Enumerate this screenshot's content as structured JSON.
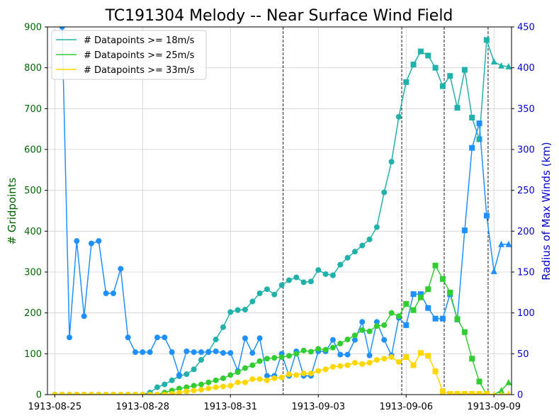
{
  "chart_data": {
    "type": "line",
    "title": "TC191304 Melody -- Near Surface Wind Field",
    "ylabel": "# Gridpoints",
    "y2label": "Radius of Max Winds (km)",
    "xticks": [
      "1913-08-25",
      "1913-08-28",
      "1913-08-31",
      "1913-09-03",
      "1913-09-06",
      "1913-09-09"
    ],
    "xtick_day_index": [
      0,
      3,
      6,
      9,
      12,
      15
    ],
    "xlim_days": [
      -0.25,
      15.6
    ],
    "ylim": [
      0,
      900
    ],
    "y2lim": [
      0,
      450
    ],
    "yticks": [
      0,
      100,
      200,
      300,
      400,
      500,
      600,
      700,
      800,
      900
    ],
    "y2ticks": [
      0,
      50,
      100,
      150,
      200,
      250,
      300,
      350,
      400,
      450
    ],
    "grid": true,
    "legend_position": "top-left",
    "left_axis_color": "#006400",
    "right_axis_color": "#0000cd",
    "vlines_days": [
      7.8,
      11.85,
      13.3,
      14.8
    ],
    "x_days": [
      0,
      0.25,
      0.5,
      0.75,
      1,
      1.25,
      1.5,
      1.75,
      2,
      2.25,
      2.5,
      2.75,
      3,
      3.25,
      3.5,
      3.75,
      4,
      4.25,
      4.5,
      4.75,
      5,
      5.25,
      5.5,
      5.75,
      6,
      6.25,
      6.5,
      6.75,
      7,
      7.25,
      7.5,
      7.75,
      8,
      8.25,
      8.5,
      8.75,
      9,
      9.25,
      9.5,
      9.75,
      10,
      10.25,
      10.5,
      10.75,
      11,
      11.25,
      11.5,
      11.75,
      12,
      12.25,
      12.5,
      12.75,
      13,
      13.25,
      13.5,
      13.75,
      14,
      14.25,
      14.5,
      14.75,
      15,
      15.25,
      15.5
    ],
    "markers": [
      "o",
      "o",
      "o",
      "o",
      "o",
      "o",
      "o",
      "o",
      "o",
      "o",
      "o",
      "o",
      "o",
      "o",
      "o",
      "o",
      "o",
      "o",
      "o",
      "o",
      "o",
      "o",
      "o",
      "o",
      "o",
      "o",
      "o",
      "o",
      "o",
      "o",
      "o",
      "o",
      "o",
      "o",
      "o",
      "o",
      "o",
      "o",
      "o",
      "o",
      "o",
      "o",
      "o",
      "o",
      "o",
      "o",
      "o",
      "o",
      "s",
      "s",
      "s",
      "s",
      "s",
      "s",
      "s",
      "s",
      "s",
      "s",
      "s",
      "s",
      "^",
      "^",
      "^"
    ],
    "series": [
      {
        "name": "# Datapoints >= 18m/s",
        "color": "#20b2aa",
        "axis": "left",
        "values": [
          0,
          0,
          0,
          0,
          0,
          0,
          0,
          0,
          0,
          0,
          0,
          0,
          0,
          5,
          18,
          25,
          35,
          45,
          50,
          62,
          85,
          105,
          135,
          165,
          202,
          207,
          208,
          228,
          248,
          258,
          245,
          268,
          280,
          287,
          275,
          277,
          305,
          295,
          292,
          318,
          335,
          350,
          365,
          380,
          410,
          495,
          570,
          680,
          765,
          808,
          840,
          830,
          800,
          755,
          780,
          702,
          795,
          678,
          625,
          868,
          815,
          805,
          803
        ]
      },
      {
        "name": "# Datapoints >= 25m/s",
        "color": "#32cd32",
        "axis": "left",
        "values": [
          0,
          0,
          0,
          0,
          0,
          0,
          0,
          0,
          0,
          0,
          0,
          0,
          0,
          0,
          0,
          5,
          10,
          15,
          18,
          22,
          25,
          30,
          35,
          40,
          48,
          55,
          65,
          72,
          82,
          88,
          90,
          92,
          95,
          100,
          108,
          105,
          112,
          110,
          115,
          125,
          135,
          145,
          158,
          155,
          168,
          170,
          200,
          192,
          222,
          207,
          238,
          258,
          316,
          283,
          250,
          185,
          153,
          88,
          32,
          0,
          0,
          10,
          30
        ]
      },
      {
        "name": "# Datapoints >= 33m/s",
        "color": "#ffd700",
        "axis": "left",
        "values": [
          0,
          0,
          0,
          0,
          0,
          0,
          0,
          0,
          0,
          0,
          0,
          0,
          0,
          0,
          0,
          0,
          2,
          5,
          8,
          10,
          12,
          15,
          18,
          20,
          22,
          30,
          30,
          38,
          38,
          35,
          40,
          42,
          50,
          48,
          52,
          52,
          58,
          62,
          68,
          70,
          72,
          78,
          75,
          78,
          85,
          88,
          92,
          80,
          92,
          72,
          102,
          95,
          57,
          8,
          2,
          2,
          2,
          2,
          2,
          2,
          0,
          0,
          2
        ]
      },
      {
        "name": "Radius of Max Winds",
        "color": "#1e90ff",
        "axis": "right",
        "values": [
          null,
          450,
          70,
          188,
          96,
          185,
          188,
          124,
          124,
          154,
          70,
          52,
          52,
          52,
          70,
          70,
          52,
          24,
          53,
          52,
          52,
          52,
          53,
          51,
          51,
          29,
          69,
          51,
          69,
          23,
          23,
          50,
          23,
          53,
          23,
          23,
          53,
          53,
          67,
          49,
          49,
          67,
          89,
          48,
          89,
          67,
          48,
          94,
          85,
          123,
          123,
          106,
          93,
          93,
          123,
          92,
          201,
          302,
          332,
          219,
          151,
          184,
          184
        ]
      }
    ]
  }
}
